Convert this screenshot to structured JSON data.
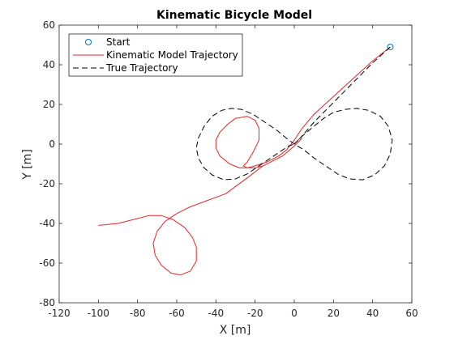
{
  "chart_data": {
    "type": "line",
    "title": "Kinematic Bicycle Model",
    "xlabel": "X [m]",
    "ylabel": "Y [m]",
    "xlim": [
      -120,
      60
    ],
    "ylim": [
      -80,
      60
    ],
    "xticks": [
      -120,
      -100,
      -80,
      -60,
      -40,
      -20,
      0,
      20,
      40,
      60
    ],
    "yticks": [
      -80,
      -60,
      -40,
      -20,
      0,
      20,
      40,
      60
    ],
    "grid": false,
    "legend_position": "top-left",
    "series": [
      {
        "name": "Start",
        "kind": "marker",
        "marker": "circle",
        "color": "#0072BD",
        "x": [
          49
        ],
        "y": [
          49
        ]
      },
      {
        "name": "Kinematic Model Trajectory",
        "kind": "line",
        "line_style": "solid",
        "color": "#e8262a",
        "x": [
          49,
          40,
          30,
          20,
          10,
          4,
          0,
          -4,
          -8,
          -14,
          -20,
          -24,
          -26,
          -24,
          -21,
          -18,
          -18,
          -20,
          -24,
          -30,
          -34,
          -38,
          -40,
          -40,
          -38,
          -33,
          -28,
          -24,
          -20,
          -16,
          -12,
          -6,
          0,
          4
        ],
        "y": [
          49,
          42,
          33,
          24,
          15,
          8,
          2,
          -3,
          -6,
          -9,
          -11,
          -12,
          -11,
          -9,
          -4,
          2,
          8,
          12,
          14,
          13,
          10,
          6,
          2,
          -2,
          -6,
          -10,
          -12,
          -12,
          -12,
          -11,
          -9,
          -6,
          -1,
          3
        ]
      },
      {
        "name": "",
        "kind": "line",
        "line_style": "solid",
        "color": "#e8262a",
        "x": [
          -16,
          -24,
          -35,
          -46,
          -54,
          -60,
          -66,
          -70,
          -72,
          -71,
          -68,
          -63,
          -58,
          -53,
          -50,
          -50,
          -52,
          -56,
          -62,
          -68,
          -74,
          -82,
          -90,
          -100
        ],
        "y": [
          -11,
          -17,
          -25,
          -29,
          -32,
          -35,
          -39,
          -44,
          -50,
          -56,
          -61,
          -65,
          -66,
          -64,
          -59,
          -52,
          -47,
          -42,
          -38,
          -36,
          -36,
          -38,
          -40,
          -41
        ]
      },
      {
        "name": "True Trajectory",
        "kind": "line",
        "line_style": "dashed",
        "color": "#000000",
        "x": [
          49,
          40,
          30,
          20,
          10,
          3,
          0
        ],
        "y": [
          49,
          41,
          31,
          21,
          11,
          3,
          0
        ]
      },
      {
        "name": "",
        "kind": "line",
        "line_style": "dashed",
        "color": "#000000",
        "x": [
          0,
          4,
          10,
          15,
          20,
          26,
          32,
          38,
          44,
          48,
          50,
          49,
          46,
          41,
          35,
          28,
          22,
          16,
          10,
          5,
          0,
          -4,
          -9,
          -15,
          -21,
          -27,
          -32,
          -37,
          -42,
          -46,
          -49,
          -50,
          -49,
          -46,
          -42,
          -36,
          -30,
          -24,
          -18,
          -12,
          -6,
          -3,
          0
        ],
        "y": [
          0,
          4,
          9,
          13,
          16,
          17.5,
          18,
          17,
          14,
          9,
          2,
          -5,
          -11,
          -15.5,
          -18,
          -17.5,
          -15,
          -11,
          -7,
          -3,
          0,
          3,
          7,
          11,
          15,
          17.5,
          18,
          17,
          14,
          9,
          3,
          -2,
          -7,
          -12,
          -15.5,
          -18,
          -17.5,
          -15,
          -11,
          -7,
          -3,
          -1,
          0
        ]
      }
    ]
  }
}
